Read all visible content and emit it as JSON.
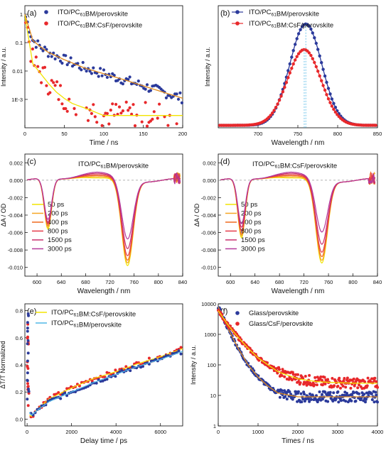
{
  "figure": {
    "panels": [
      {
        "id": "a",
        "label": "(a)",
        "legend": [
          "ITO/PC61BM/perovskite",
          "ITO/PC61BM:CsF/perovskite"
        ],
        "xlabel": "Time / ns",
        "ylabel": "Intensity / a.u.",
        "xticks": [
          "0",
          "50",
          "100",
          "150",
          "200"
        ],
        "yticks": [
          "1",
          "0.1",
          "0.01",
          "1E-3"
        ]
      },
      {
        "id": "b",
        "label": "(b)",
        "legend": [
          "ITO/PC61BM/perovskite",
          "ITO/PC61BM:CsF/perovskite"
        ],
        "xlabel": "Wavelength / nm",
        "ylabel": "Intensity / a.u.",
        "xticks": [
          "700",
          "750",
          "800",
          "850"
        ],
        "yticks": []
      },
      {
        "id": "c",
        "label": "(c)",
        "title": "ITO/PC61BM/perovskite",
        "legend": [
          "50 ps",
          "200 ps",
          "400 ps",
          "800 ps",
          "1500 ps",
          "3000 ps"
        ],
        "xlabel": "Wavelength / nm",
        "ylabel": "ΔA / OD",
        "xticks": [
          "600",
          "640",
          "680",
          "720",
          "760",
          "800",
          "840"
        ],
        "yticks": [
          "0.002",
          "0.000",
          "-0.002",
          "-0.004",
          "-0.006",
          "-0.008",
          "-0.010"
        ]
      },
      {
        "id": "d",
        "label": "(d)",
        "title": "ITO/PC61BM:CsF/perovskite",
        "legend": [
          "50 ps",
          "200 ps",
          "400 ps",
          "800 ps",
          "1500 ps",
          "3000 ps"
        ],
        "xlabel": "Wavelength / nm",
        "ylabel": "ΔA / OD",
        "xticks": [
          "600",
          "640",
          "680",
          "720",
          "760",
          "800",
          "840"
        ],
        "yticks": [
          "0.002",
          "0.000",
          "-0.002",
          "-0.004",
          "-0.006",
          "-0.008",
          "-0.010"
        ]
      },
      {
        "id": "e",
        "label": "(e)",
        "legend": [
          "ITO/PC61BM:CsF/perovskite",
          "ITO/PC61BM/perovskite"
        ],
        "xlabel": "Delay time / ps",
        "ylabel": "ΔT/T Normalized",
        "xticks": [
          "0",
          "2000",
          "4000",
          "6000"
        ],
        "yticks": [
          "0.0",
          "0.2",
          "0.4",
          "0.6",
          "0.8"
        ]
      },
      {
        "id": "f",
        "label": "(f)",
        "legend": [
          "Glass/perovskite",
          "Glass/CsF/perovskite"
        ],
        "xlabel": "Times / ns",
        "ylabel": "Intensity / a.u.",
        "xticks": [
          "0",
          "1000",
          "2000",
          "3000",
          "4000"
        ],
        "yticks": [
          "10000",
          "1000",
          "100",
          "10",
          "1"
        ]
      }
    ]
  },
  "chart_data": [
    {
      "panel": "a",
      "type": "scatter",
      "x_range": [
        0,
        200
      ],
      "y_range": [
        0.0001,
        1
      ],
      "y_scale": "log",
      "series": [
        {
          "name": "ITO/PC61BM/perovskite",
          "color": "#2b3a9b",
          "fit_color": "#e08a1e",
          "x": [
            0,
            10,
            20,
            30,
            50,
            75,
            100,
            125,
            150,
            175,
            200
          ],
          "values": [
            1.0,
            0.12,
            0.07,
            0.045,
            0.025,
            0.013,
            0.008,
            0.005,
            0.003,
            0.0018,
            0.0011
          ]
        },
        {
          "name": "ITO/PC61BM:CsF/perovskite",
          "color": "#e8282b",
          "fit_color": "#f2e400",
          "x": [
            0,
            10,
            20,
            30,
            40,
            50,
            60,
            80,
            100,
            150,
            200
          ],
          "values": [
            1.0,
            0.02,
            0.009,
            0.004,
            0.002,
            0.0012,
            0.0008,
            0.0005,
            0.0003,
            0.0003,
            0.0003
          ]
        }
      ]
    },
    {
      "panel": "b",
      "type": "line",
      "x_range": [
        650,
        850
      ],
      "y_range": [
        0,
        1.0
      ],
      "series": [
        {
          "name": "ITO/PC61BM/perovskite",
          "color": "#2b3a9b",
          "center": 760,
          "peak": 0.83,
          "sigma": 20
        },
        {
          "name": "ITO/PC61BM:CsF/perovskite",
          "color": "#e8282b",
          "center": 758,
          "peak": 0.62,
          "sigma": 21
        }
      ]
    },
    {
      "panel": "c",
      "type": "line",
      "x_range": [
        580,
        840
      ],
      "y_range": [
        -0.011,
        0.003
      ],
      "series": [
        {
          "name": "50 ps",
          "color": "#f2e400",
          "depth_main": 0.0098,
          "depth_side": 0.0058
        },
        {
          "name": "200 ps",
          "color": "#f5a623",
          "depth_main": 0.0095,
          "depth_side": 0.0056
        },
        {
          "name": "400 ps",
          "color": "#f06a1e",
          "depth_main": 0.0092,
          "depth_side": 0.0054
        },
        {
          "name": "800 ps",
          "color": "#e43b4a",
          "depth_main": 0.0087,
          "depth_side": 0.0052
        },
        {
          "name": "1500 ps",
          "color": "#c8306e",
          "depth_main": 0.0079,
          "depth_side": 0.005
        },
        {
          "name": "3000 ps",
          "color": "#b53b9c",
          "depth_main": 0.0068,
          "depth_side": 0.0047
        }
      ]
    },
    {
      "panel": "d",
      "type": "line",
      "x_range": [
        580,
        840
      ],
      "y_range": [
        -0.011,
        0.003
      ],
      "series": [
        {
          "name": "50 ps",
          "color": "#f2e400",
          "depth_main": 0.0095,
          "depth_side": 0.0068
        },
        {
          "name": "200 ps",
          "color": "#f5a623",
          "depth_main": 0.0092,
          "depth_side": 0.0066
        },
        {
          "name": "400 ps",
          "color": "#f06a1e",
          "depth_main": 0.0088,
          "depth_side": 0.0064
        },
        {
          "name": "800 ps",
          "color": "#e43b4a",
          "depth_main": 0.0083,
          "depth_side": 0.006
        },
        {
          "name": "1500 ps",
          "color": "#c8306e",
          "depth_main": 0.0074,
          "depth_side": 0.0056
        },
        {
          "name": "3000 ps",
          "color": "#b53b9c",
          "depth_main": 0.006,
          "depth_side": 0.0052
        }
      ]
    },
    {
      "panel": "e",
      "type": "scatter",
      "x_range": [
        -100,
        7000
      ],
      "y_range": [
        -0.05,
        0.85
      ],
      "series": [
        {
          "name": "ITO/PC61BM:CsF/perovskite",
          "color": "#e8282b",
          "fit_color": "#f2e400",
          "x": [
            0,
            100,
            200,
            500,
            1000,
            2000,
            3000,
            4000,
            5000,
            6000,
            7000
          ],
          "values": [
            0.8,
            0.03,
            0.02,
            0.08,
            0.15,
            0.23,
            0.3,
            0.35,
            0.41,
            0.46,
            0.52
          ]
        },
        {
          "name": "ITO/PC61BM/perovskite",
          "color": "#2b3a9b",
          "fit_color": "#4fb7e6",
          "x": [
            0,
            100,
            200,
            500,
            1000,
            2000,
            3000,
            4000,
            5000,
            6000,
            7000
          ],
          "values": [
            0.75,
            0.05,
            0.03,
            0.07,
            0.13,
            0.2,
            0.27,
            0.33,
            0.39,
            0.44,
            0.5
          ]
        }
      ]
    },
    {
      "panel": "f",
      "type": "scatter",
      "x_range": [
        0,
        4000
      ],
      "y_range": [
        1,
        10000
      ],
      "y_scale": "log",
      "series": [
        {
          "name": "Glass/perovskite",
          "color": "#2b3a9b",
          "fit_color": "#e08a1e",
          "x": [
            0,
            250,
            500,
            750,
            1000,
            1250,
            1500,
            2000,
            2500,
            3000,
            3500,
            4000
          ],
          "values": [
            8000,
            1500,
            350,
            100,
            40,
            20,
            12,
            9,
            9,
            9,
            9,
            9
          ]
        },
        {
          "name": "Glass/CsF/perovskite",
          "color": "#e8282b",
          "fit_color": "#f2e400",
          "x": [
            0,
            250,
            500,
            750,
            1000,
            1250,
            1500,
            2000,
            2500,
            3000,
            3500,
            4000
          ],
          "values": [
            6000,
            2000,
            800,
            350,
            170,
            100,
            60,
            35,
            28,
            26,
            25,
            25
          ]
        }
      ]
    }
  ]
}
